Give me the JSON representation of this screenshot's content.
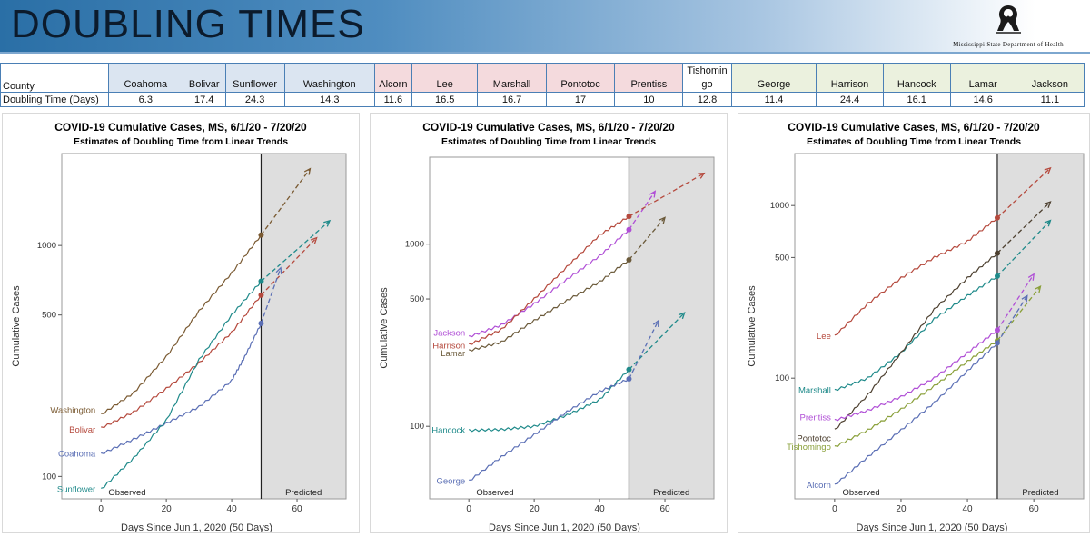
{
  "header": {
    "title": "DOUBLING TIMES",
    "logo_text": "Mississippi State Department of Health"
  },
  "table": {
    "row_label_county": "County",
    "row_label_doubling": "Doubling Time (Days)",
    "groups": [
      {
        "color": "#dbe5f1",
        "counties": [
          {
            "name": "Coahoma",
            "value": "6.3"
          },
          {
            "name": "Bolivar",
            "value": "17.4"
          },
          {
            "name": "Sunflower",
            "value": "24.3"
          },
          {
            "name": "Washington",
            "value": "14.3"
          }
        ]
      },
      {
        "color": "#f4dadd",
        "counties": [
          {
            "name": "Alcorn",
            "value": "11.6"
          },
          {
            "name": "Lee",
            "value": "16.5"
          },
          {
            "name": "Marshall",
            "value": "16.7"
          },
          {
            "name": "Pontotoc",
            "value": "17"
          },
          {
            "name": "Prentiss",
            "value": "10"
          }
        ]
      },
      {
        "color": "#ffffff",
        "counties": [
          {
            "name": "Tishomin\ngo",
            "value": "12.8"
          }
        ]
      },
      {
        "color": "#ebf1de",
        "counties": [
          {
            "name": "George",
            "value": "11.4"
          },
          {
            "name": "Harrison",
            "value": "24.4"
          },
          {
            "name": "Hancock",
            "value": "16.1"
          },
          {
            "name": "Lamar",
            "value": "14.6"
          },
          {
            "name": "Jackson",
            "value": "11.1"
          }
        ]
      }
    ]
  },
  "chart_data": [
    {
      "type": "line",
      "title": "COVID-19 Cumulative Cases, MS, 6/1/20 - 7/20/20",
      "subtitle": "Estimates of Doubling Time from Linear Trends",
      "xlabel": "Days Since Jun 1, 2020 (50 Days)",
      "ylabel": "Cumulative Cases",
      "yscale": "log",
      "xlim": [
        -12,
        75
      ],
      "ylim": [
        80,
        2500
      ],
      "xticks": [
        0,
        20,
        40,
        60
      ],
      "yticks": [
        100,
        500,
        1000
      ],
      "observed_end": 49,
      "region_labels": {
        "observed": "Observed",
        "predicted": "Predicted"
      },
      "series": [
        {
          "name": "Washington",
          "color": "#7a5a32",
          "observed": [
            [
              0,
              185
            ],
            [
              10,
              230
            ],
            [
              20,
              330
            ],
            [
              30,
              520
            ],
            [
              40,
              760
            ],
            [
              49,
              1110
            ]
          ],
          "projection": [
            [
              49,
              1110
            ],
            [
              64,
              2150
            ]
          ]
        },
        {
          "name": "Bolivar",
          "color": "#b5493d",
          "observed": [
            [
              0,
              162
            ],
            [
              10,
              190
            ],
            [
              20,
              240
            ],
            [
              30,
              310
            ],
            [
              40,
              420
            ],
            [
              49,
              610
            ]
          ],
          "projection": [
            [
              49,
              610
            ],
            [
              66,
              1080
            ]
          ]
        },
        {
          "name": "Coahoma",
          "color": "#5b6fb5",
          "observed": [
            [
              0,
              125
            ],
            [
              10,
              145
            ],
            [
              20,
              170
            ],
            [
              30,
              200
            ],
            [
              40,
              260
            ],
            [
              44,
              330
            ],
            [
              49,
              460
            ]
          ],
          "projection": [
            [
              49,
              460
            ],
            [
              55,
              800
            ]
          ]
        },
        {
          "name": "Sunflower",
          "color": "#1f8a8a",
          "observed": [
            [
              0,
              88
            ],
            [
              10,
              120
            ],
            [
              20,
              175
            ],
            [
              30,
              320
            ],
            [
              40,
              500
            ],
            [
              49,
              700
            ]
          ],
          "projection": [
            [
              49,
              700
            ],
            [
              70,
              1280
            ]
          ]
        }
      ]
    },
    {
      "type": "line",
      "title": "COVID-19 Cumulative Cases, MS, 6/1/20 - 7/20/20",
      "subtitle": "Estimates of Doubling Time from Linear Trends",
      "xlabel": "Days Since Jun 1, 2020 (50 Days)",
      "ylabel": "Cumulative Cases",
      "yscale": "log",
      "xlim": [
        -12,
        75
      ],
      "ylim": [
        40,
        3000
      ],
      "xticks": [
        0,
        20,
        40,
        60
      ],
      "yticks": [
        100,
        500,
        1000
      ],
      "observed_end": 49,
      "region_labels": {
        "observed": "Observed",
        "predicted": "Predicted"
      },
      "series": [
        {
          "name": "Jackson",
          "color": "#b04fd6",
          "observed": [
            [
              0,
              310
            ],
            [
              10,
              360
            ],
            [
              20,
              470
            ],
            [
              30,
              640
            ],
            [
              40,
              860
            ],
            [
              49,
              1200
            ]
          ],
          "projection": [
            [
              49,
              1200
            ],
            [
              57,
              1950
            ]
          ]
        },
        {
          "name": "Harrison",
          "color": "#b5493d",
          "observed": [
            [
              0,
              280
            ],
            [
              10,
              340
            ],
            [
              20,
              500
            ],
            [
              30,
              750
            ],
            [
              40,
              1120
            ],
            [
              49,
              1420
            ]
          ],
          "projection": [
            [
              49,
              1420
            ],
            [
              72,
              2450
            ]
          ]
        },
        {
          "name": "Lamar",
          "color": "#6b5a3a",
          "observed": [
            [
              0,
              260
            ],
            [
              10,
              290
            ],
            [
              20,
              380
            ],
            [
              30,
              490
            ],
            [
              40,
              620
            ],
            [
              49,
              820
            ]
          ],
          "projection": [
            [
              49,
              820
            ],
            [
              60,
              1400
            ]
          ]
        },
        {
          "name": "Hancock",
          "color": "#1f8a8a",
          "observed": [
            [
              0,
              95
            ],
            [
              10,
              96
            ],
            [
              20,
              100
            ],
            [
              30,
              115
            ],
            [
              40,
              140
            ],
            [
              49,
              205
            ]
          ],
          "projection": [
            [
              49,
              205
            ],
            [
              66,
              420
            ]
          ]
        },
        {
          "name": "George",
          "color": "#5b6fb5",
          "observed": [
            [
              0,
              50
            ],
            [
              10,
              68
            ],
            [
              20,
              90
            ],
            [
              30,
              120
            ],
            [
              40,
              155
            ],
            [
              49,
              182
            ]
          ],
          "projection": [
            [
              49,
              182
            ],
            [
              58,
              380
            ]
          ]
        }
      ]
    },
    {
      "type": "line",
      "title": "COVID-19 Cumulative Cases, MS, 6/1/20 - 7/20/20",
      "subtitle": "Estimates of Doubling Time from Linear Trends",
      "xlabel": "Days Since Jun 1, 2020 (50 Days)",
      "ylabel": "Cumulative Cases",
      "yscale": "log",
      "xlim": [
        -12,
        75
      ],
      "ylim": [
        20,
        2000
      ],
      "xticks": [
        0,
        20,
        40,
        60
      ],
      "yticks": [
        100,
        500,
        1000
      ],
      "observed_end": 49,
      "region_labels": {
        "observed": "Observed",
        "predicted": "Predicted"
      },
      "series": [
        {
          "name": "Lee",
          "color": "#b5493d",
          "observed": [
            [
              0,
              175
            ],
            [
              10,
              270
            ],
            [
              20,
              380
            ],
            [
              30,
              500
            ],
            [
              40,
              620
            ],
            [
              49,
              850
            ]
          ],
          "projection": [
            [
              49,
              850
            ],
            [
              65,
              1650
            ]
          ]
        },
        {
          "name": "Marshall",
          "color": "#1f8a8a",
          "observed": [
            [
              0,
              85
            ],
            [
              10,
              100
            ],
            [
              20,
              140
            ],
            [
              30,
              220
            ],
            [
              40,
              300
            ],
            [
              49,
              390
            ]
          ],
          "projection": [
            [
              49,
              390
            ],
            [
              65,
              820
            ]
          ]
        },
        {
          "name": "Pontotoc",
          "color": "#4d4030",
          "observed": [
            [
              0,
              50
            ],
            [
              10,
              80
            ],
            [
              20,
              140
            ],
            [
              30,
              250
            ],
            [
              40,
              380
            ],
            [
              49,
              530
            ]
          ],
          "projection": [
            [
              49,
              530
            ],
            [
              65,
              1050
            ]
          ]
        },
        {
          "name": "Prentiss",
          "color": "#b04fd6",
          "observed": [
            [
              0,
              57
            ],
            [
              10,
              65
            ],
            [
              20,
              78
            ],
            [
              30,
              100
            ],
            [
              40,
              140
            ],
            [
              49,
              190
            ]
          ],
          "projection": [
            [
              49,
              190
            ],
            [
              60,
              400
            ]
          ]
        },
        {
          "name": "Tishomingo",
          "color": "#8aa03a",
          "observed": [
            [
              0,
              40
            ],
            [
              10,
              50
            ],
            [
              20,
              66
            ],
            [
              30,
              90
            ],
            [
              40,
              125
            ],
            [
              49,
              165
            ]
          ],
          "projection": [
            [
              49,
              165
            ],
            [
              62,
              340
            ]
          ]
        },
        {
          "name": "Alcorn",
          "color": "#5b6fb5",
          "observed": [
            [
              0,
              24
            ],
            [
              10,
              35
            ],
            [
              20,
              50
            ],
            [
              30,
              72
            ],
            [
              40,
              110
            ],
            [
              49,
              160
            ]
          ],
          "projection": [
            [
              49,
              160
            ],
            [
              58,
              300
            ]
          ]
        }
      ]
    }
  ]
}
